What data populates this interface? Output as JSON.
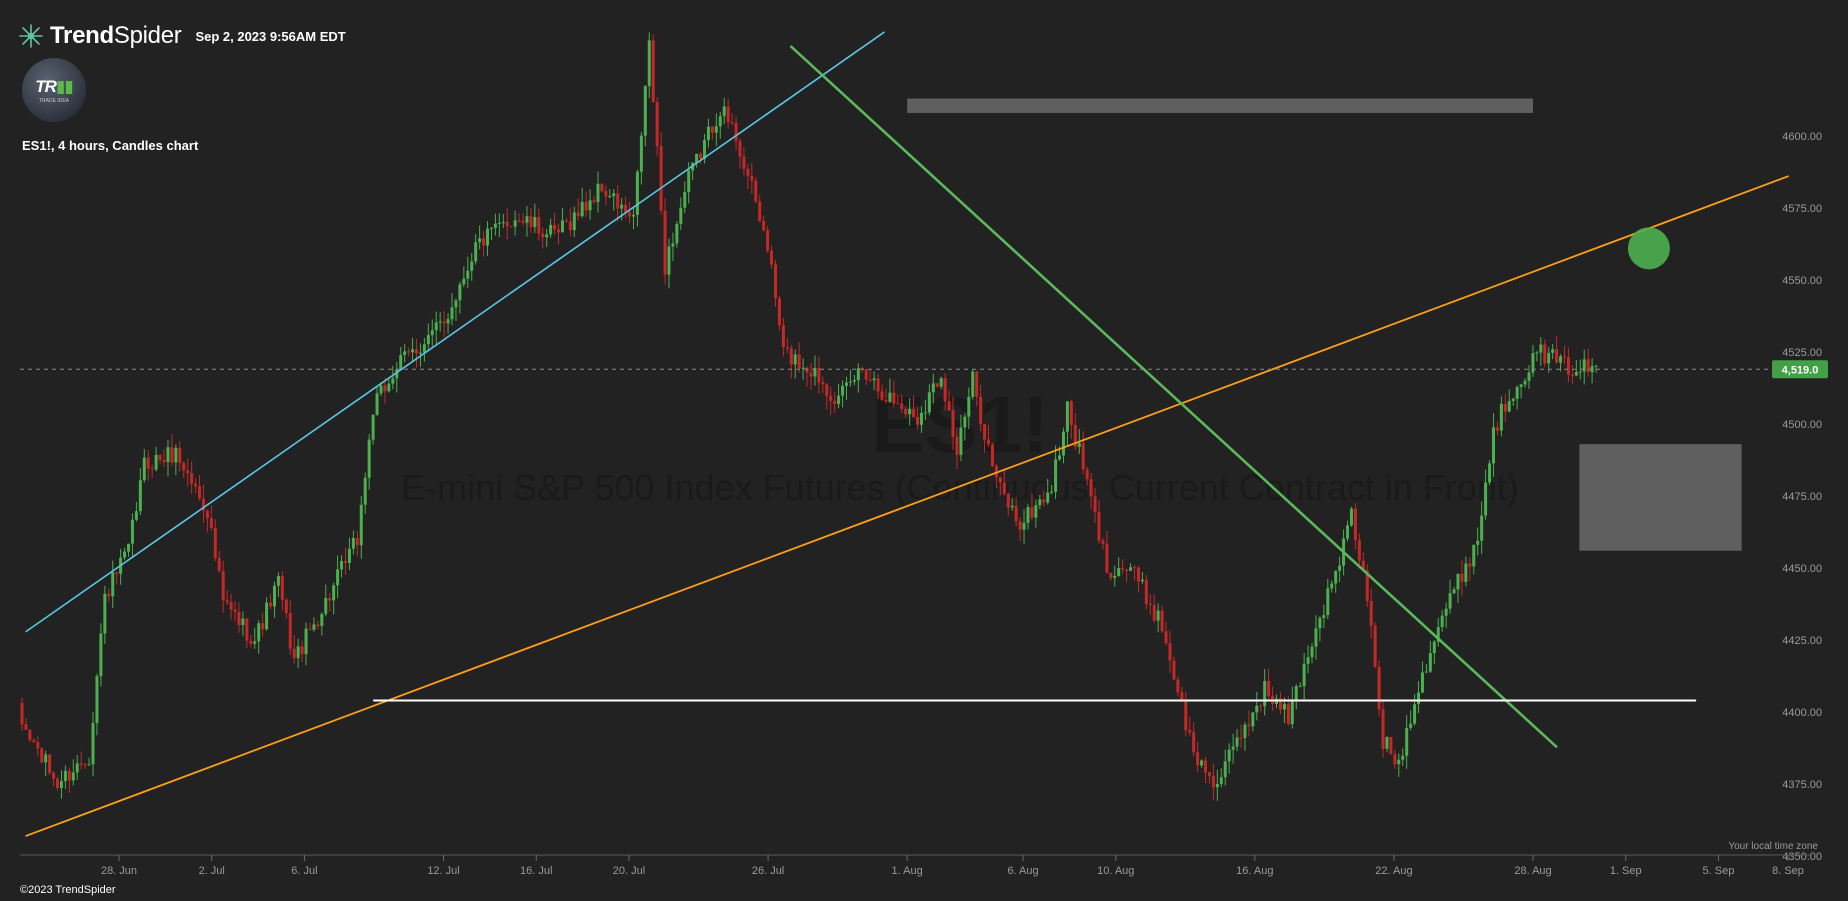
{
  "header": {
    "brand_plain": "Trend",
    "brand_bold": "Spider",
    "timestamp": "Sep 2, 2023 9:56AM EDT"
  },
  "avatar": {
    "mark": "TR",
    "subtitle": "TRADE IDEA"
  },
  "chart_label": "ES1!, 4 hours, Candles chart",
  "watermark": {
    "symbol": "ES1!",
    "name": "E-mini S&P 500 Index Futures (Continuous: Current Contract in Front)"
  },
  "footer": "©2023 TrendSpider",
  "timezone_note": "Your local time zone",
  "colors": {
    "background": "#222222",
    "up": "#4caf50",
    "down": "#c62828",
    "blue_trend": "#5bc8e8",
    "orange_trend": "#ff9f1a",
    "green_trend": "#5cb85c",
    "support": "#ffffff",
    "zone": "#6a6a6a",
    "price_badge": "#43a047"
  },
  "chart_data": {
    "type": "candlestick",
    "symbol": "ES1!",
    "timeframe": "4 hours",
    "ylim": [
      4350,
      4600
    ],
    "y_ticks": [
      "4350.00",
      "4375.00",
      "4400.00",
      "4425.00",
      "4450.00",
      "4475.00",
      "4500.00",
      "4525.00",
      "4550.00",
      "4575.00",
      "4600.00"
    ],
    "x_ticks": [
      "28. Jun",
      "2. Jul",
      "6. Jul",
      "12. Jul",
      "16. Jul",
      "20. Jul",
      "26. Jul",
      "1. Aug",
      "6. Aug",
      "10. Aug",
      "16. Aug",
      "22. Aug",
      "28. Aug",
      "1. Sep",
      "5. Sep",
      "8. Sep"
    ],
    "last_price": 4519.0,
    "last_price_label": "4,519.0",
    "path_anchors": [
      [
        0,
        4398
      ],
      [
        10,
        4375
      ],
      [
        18,
        4385
      ],
      [
        22,
        4440
      ],
      [
        28,
        4456
      ],
      [
        32,
        4486
      ],
      [
        40,
        4490
      ],
      [
        48,
        4470
      ],
      [
        52,
        4438
      ],
      [
        60,
        4425
      ],
      [
        66,
        4445
      ],
      [
        70,
        4418
      ],
      [
        78,
        4438
      ],
      [
        86,
        4460
      ],
      [
        90,
        4505
      ],
      [
        96,
        4520
      ],
      [
        108,
        4535
      ],
      [
        116,
        4562
      ],
      [
        126,
        4572
      ],
      [
        136,
        4565
      ],
      [
        148,
        4582
      ],
      [
        156,
        4570
      ],
      [
        160,
        4632
      ],
      [
        164,
        4555
      ],
      [
        170,
        4585
      ],
      [
        178,
        4610
      ],
      [
        182,
        4600
      ],
      [
        190,
        4562
      ],
      [
        194,
        4525
      ],
      [
        202,
        4518
      ],
      [
        208,
        4508
      ],
      [
        214,
        4520
      ],
      [
        220,
        4510
      ],
      [
        228,
        4502
      ],
      [
        234,
        4518
      ],
      [
        238,
        4490
      ],
      [
        242,
        4515
      ],
      [
        248,
        4480
      ],
      [
        254,
        4465
      ],
      [
        262,
        4478
      ],
      [
        266,
        4505
      ],
      [
        270,
        4485
      ],
      [
        276,
        4450
      ],
      [
        282,
        4450
      ],
      [
        290,
        4430
      ],
      [
        298,
        4385
      ],
      [
        304,
        4375
      ],
      [
        310,
        4392
      ],
      [
        316,
        4408
      ],
      [
        322,
        4398
      ],
      [
        328,
        4425
      ],
      [
        334,
        4448
      ],
      [
        338,
        4468
      ],
      [
        342,
        4440
      ],
      [
        346,
        4390
      ],
      [
        350,
        4382
      ],
      [
        354,
        4405
      ],
      [
        360,
        4430
      ],
      [
        366,
        4448
      ],
      [
        370,
        4460
      ],
      [
        374,
        4498
      ],
      [
        380,
        4515
      ],
      [
        386,
        4525
      ],
      [
        392,
        4520
      ],
      [
        400,
        4519
      ]
    ],
    "trendlines": [
      {
        "name": "blue_uptrend",
        "from": [
          "2023-06-24",
          4428
        ],
        "to": [
          "2023-07-31",
          4636
        ]
      },
      {
        "name": "orange_uptrend",
        "from": [
          "2023-06-24",
          4357
        ],
        "to": [
          "2023-09-08",
          4586
        ]
      },
      {
        "name": "green_downtrend",
        "from": [
          "2023-07-27",
          4631
        ],
        "to": [
          "2023-08-29",
          4388
        ]
      },
      {
        "name": "white_support",
        "from": [
          "2023-07-09",
          4404
        ],
        "to": [
          "2023-09-04",
          4404
        ]
      }
    ],
    "zones": [
      {
        "name": "resistance_zone",
        "from": "2023-08-01",
        "to": "2023-08-28",
        "y_low": 4608,
        "y_high": 4613
      },
      {
        "name": "demand_zone",
        "from": "2023-08-30",
        "to": "2023-09-06",
        "y_low": 4456,
        "y_high": 4493
      }
    ],
    "target_marker": {
      "date": "2023-09-02",
      "price": 4561
    }
  }
}
